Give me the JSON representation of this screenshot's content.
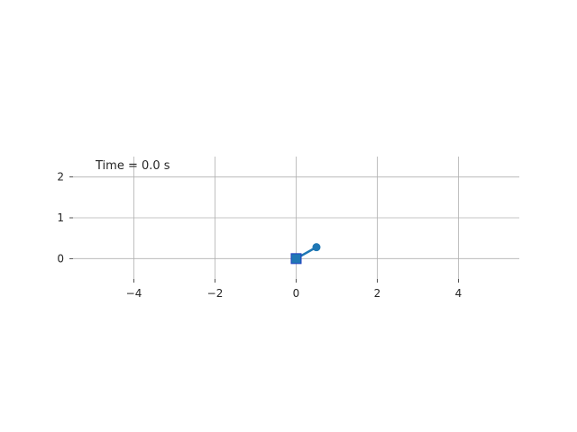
{
  "chart_data": {
    "type": "line",
    "title": "",
    "xlabel": "",
    "ylabel": "",
    "xlim": [
      -5.5,
      5.5
    ],
    "ylim": [
      -0.5,
      2.5
    ],
    "xticks": [
      -4,
      -2,
      0,
      2,
      4
    ],
    "yticks": [
      0,
      1,
      2
    ],
    "xtick_labels": [
      "−4",
      "−2",
      "0",
      "2",
      "4"
    ],
    "ytick_labels": [
      "0",
      "1",
      "2"
    ],
    "grid": true,
    "annotation": "Time = 0.0 s",
    "series": [
      {
        "x": [
          0,
          0.5
        ],
        "y": [
          0,
          0.28
        ],
        "markers": [
          "square",
          "circle"
        ]
      }
    ],
    "colors": {
      "line": "#1f77b4",
      "cart_edge": "#1f3fbf",
      "grid": "#b0b0b0",
      "text": "#262626"
    }
  }
}
